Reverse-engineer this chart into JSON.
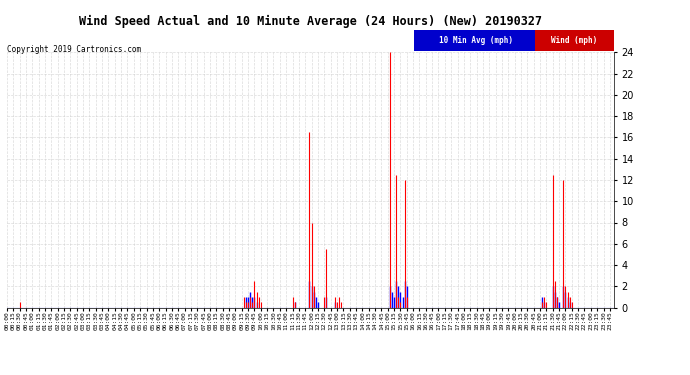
{
  "title": "Wind Speed Actual and 10 Minute Average (24 Hours) (New) 20190327",
  "copyright": "Copyright 2019 Cartronics.com",
  "legend_labels": [
    "10 Min Avg (mph)",
    "Wind (mph)"
  ],
  "legend_colors": [
    "#0000ff",
    "#ff0000"
  ],
  "legend_bg_blue": "#0000cc",
  "legend_bg_red": "#cc0000",
  "ylim": [
    0,
    24.0
  ],
  "yticks": [
    0.0,
    2.0,
    4.0,
    6.0,
    8.0,
    10.0,
    12.0,
    14.0,
    16.0,
    18.0,
    20.0,
    22.0,
    24.0
  ],
  "bg_color": "#ffffff",
  "plot_bg_color": "#ffffff",
  "grid_color": "#cccccc",
  "blue_color": "#0000ff",
  "red_color": "#ff0000",
  "grey_color": "#808080",
  "wind_actual": [
    {
      "idx": 6,
      "val": 0.5
    },
    {
      "idx": 112,
      "val": 1.0
    },
    {
      "idx": 113,
      "val": 0.5
    },
    {
      "idx": 114,
      "val": 0.5
    },
    {
      "idx": 115,
      "val": 1.0
    },
    {
      "idx": 116,
      "val": 0.5
    },
    {
      "idx": 117,
      "val": 2.5
    },
    {
      "idx": 118,
      "val": 1.5
    },
    {
      "idx": 119,
      "val": 1.0
    },
    {
      "idx": 120,
      "val": 0.5
    },
    {
      "idx": 135,
      "val": 1.0
    },
    {
      "idx": 136,
      "val": 0.5
    },
    {
      "idx": 143,
      "val": 16.5
    },
    {
      "idx": 144,
      "val": 8.0
    },
    {
      "idx": 145,
      "val": 2.0
    },
    {
      "idx": 150,
      "val": 1.0
    },
    {
      "idx": 151,
      "val": 5.5
    },
    {
      "idx": 155,
      "val": 1.0
    },
    {
      "idx": 156,
      "val": 0.5
    },
    {
      "idx": 157,
      "val": 1.0
    },
    {
      "idx": 158,
      "val": 0.5
    },
    {
      "idx": 181,
      "val": 24.0
    },
    {
      "idx": 184,
      "val": 12.5
    },
    {
      "idx": 185,
      "val": 1.0
    },
    {
      "idx": 186,
      "val": 0.5
    },
    {
      "idx": 188,
      "val": 12.0
    },
    {
      "idx": 189,
      "val": 1.0
    },
    {
      "idx": 253,
      "val": 0.5
    },
    {
      "idx": 254,
      "val": 1.0
    },
    {
      "idx": 255,
      "val": 0.5
    },
    {
      "idx": 258,
      "val": 12.5
    },
    {
      "idx": 259,
      "val": 2.5
    },
    {
      "idx": 260,
      "val": 1.0
    },
    {
      "idx": 263,
      "val": 12.0
    },
    {
      "idx": 264,
      "val": 2.0
    },
    {
      "idx": 265,
      "val": 1.5
    },
    {
      "idx": 266,
      "val": 1.0
    },
    {
      "idx": 267,
      "val": 0.5
    }
  ],
  "wind_avg": [
    {
      "idx": 113,
      "val": 1.0
    },
    {
      "idx": 114,
      "val": 1.0
    },
    {
      "idx": 115,
      "val": 1.5
    },
    {
      "idx": 116,
      "val": 1.0
    },
    {
      "idx": 117,
      "val": 1.0
    },
    {
      "idx": 118,
      "val": 0.5
    },
    {
      "idx": 136,
      "val": 0.5
    },
    {
      "idx": 143,
      "val": 2.5
    },
    {
      "idx": 144,
      "val": 2.0
    },
    {
      "idx": 145,
      "val": 1.5
    },
    {
      "idx": 146,
      "val": 1.0
    },
    {
      "idx": 147,
      "val": 0.5
    },
    {
      "idx": 151,
      "val": 1.0
    },
    {
      "idx": 155,
      "val": 0.5
    },
    {
      "idx": 181,
      "val": 2.0
    },
    {
      "idx": 182,
      "val": 1.5
    },
    {
      "idx": 183,
      "val": 1.0
    },
    {
      "idx": 184,
      "val": 2.5
    },
    {
      "idx": 185,
      "val": 2.0
    },
    {
      "idx": 186,
      "val": 1.5
    },
    {
      "idx": 187,
      "val": 1.0
    },
    {
      "idx": 188,
      "val": 2.5
    },
    {
      "idx": 189,
      "val": 2.0
    },
    {
      "idx": 253,
      "val": 1.0
    },
    {
      "idx": 254,
      "val": 0.5
    },
    {
      "idx": 258,
      "val": 2.0
    },
    {
      "idx": 259,
      "val": 1.5
    },
    {
      "idx": 260,
      "val": 1.0
    },
    {
      "idx": 261,
      "val": 0.5
    },
    {
      "idx": 263,
      "val": 2.0
    },
    {
      "idx": 264,
      "val": 1.5
    },
    {
      "idx": 265,
      "val": 1.0
    },
    {
      "idx": 266,
      "val": 0.5
    }
  ],
  "n_points": 288,
  "tick_every": 3,
  "figwidth": 6.9,
  "figheight": 3.75,
  "dpi": 100
}
